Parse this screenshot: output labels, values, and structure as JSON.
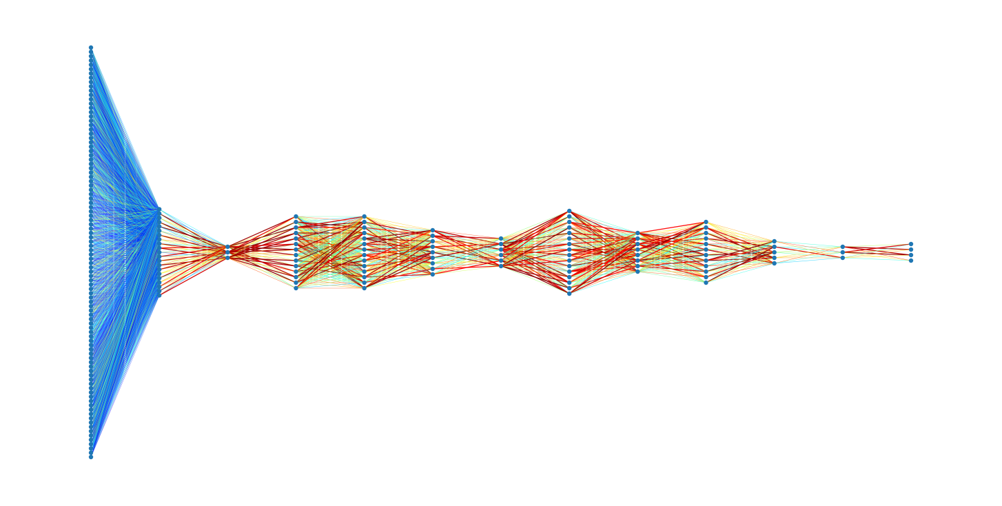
{
  "figure": {
    "kind": "neural-network-weight-graph",
    "node_color": "#1f77b4",
    "edge_colormap": "jet",
    "colormap_stops": [
      "#00007f",
      "#0000ff",
      "#007fff",
      "#00ffff",
      "#7fff7f",
      "#ffff00",
      "#ff7f00",
      "#ff0000",
      "#7f0000"
    ]
  },
  "network": {
    "layer_sizes": [
      96,
      21,
      3,
      14,
      14,
      9,
      6,
      16,
      8,
      12,
      5,
      3,
      4
    ],
    "edge_strength_profile": [
      0.22,
      0.5,
      0.72,
      0.58,
      0.6,
      0.62,
      0.6,
      0.62,
      0.6,
      0.58,
      0.6,
      0.62
    ]
  }
}
